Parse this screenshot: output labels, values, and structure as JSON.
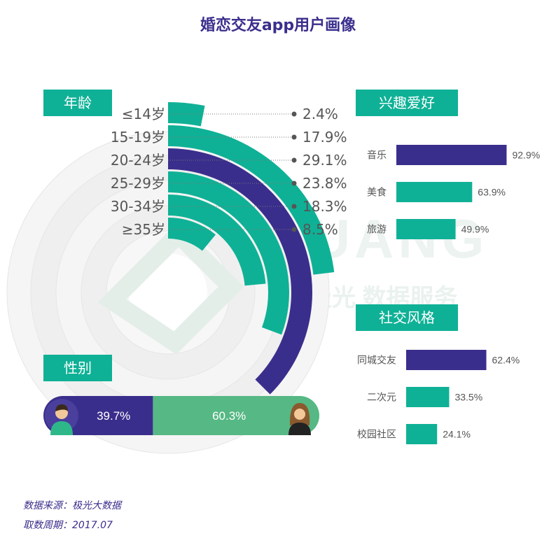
{
  "title": "婚恋交友app用户画像",
  "colors": {
    "primary": "#3a2e8c",
    "teal": "#0fb196",
    "green": "#56b884",
    "label": "#555555"
  },
  "watermark": {
    "brand": "JIGUANG",
    "sub": "极光 数据服务"
  },
  "chart_data": [
    {
      "type": "radial-bar",
      "title": "年龄",
      "categories": [
        "≤14岁",
        "15-19岁",
        "20-24岁",
        "25-29岁",
        "30-34岁",
        "≥35岁"
      ],
      "values": [
        2.4,
        17.9,
        29.1,
        23.8,
        18.3,
        8.5
      ],
      "value_labels": [
        "2.4%",
        "17.9%",
        "29.1%",
        "23.8%",
        "18.3%",
        "8.5%"
      ],
      "highlight": "20-24岁"
    },
    {
      "type": "bar",
      "title": "兴趣爱好",
      "categories": [
        "音乐",
        "美食",
        "旅游"
      ],
      "values": [
        92.9,
        63.9,
        49.9
      ],
      "value_labels": [
        "92.9%",
        "63.9%",
        "49.9%"
      ],
      "xlim": [
        0,
        100
      ]
    },
    {
      "type": "bar",
      "title": "社交风格",
      "categories": [
        "同城交友",
        "二次元",
        "校园社区"
      ],
      "values": [
        62.4,
        33.5,
        24.1
      ],
      "value_labels": [
        "62.4%",
        "33.5%",
        "24.1%"
      ],
      "xlim": [
        0,
        100
      ]
    },
    {
      "type": "stacked-bar",
      "title": "性别",
      "categories": [
        "男",
        "女"
      ],
      "values": [
        39.7,
        60.3
      ],
      "value_labels": [
        "39.7%",
        "60.3%"
      ]
    }
  ],
  "footer": {
    "source": "数据来源：极光大数据",
    "period": "取数周期：2017.07"
  }
}
